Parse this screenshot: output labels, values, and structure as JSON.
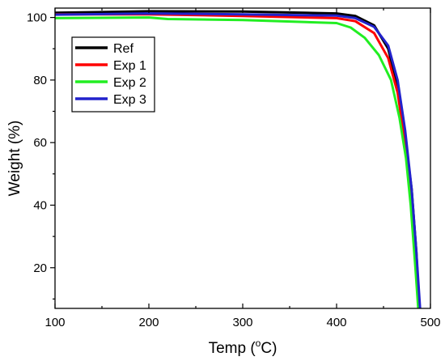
{
  "chart_data": {
    "type": "line",
    "xlabel": "Temp (",
    "xlabel_sup": "o",
    "xlabel_unit": "C)",
    "ylabel": "Weight (%)",
    "xlim": [
      100,
      500
    ],
    "ylim": [
      7,
      103
    ],
    "x_ticks": [
      100,
      200,
      300,
      400,
      500
    ],
    "y_ticks": [
      20,
      40,
      60,
      80,
      100
    ],
    "grid": false,
    "legend_position": "top-left",
    "series": [
      {
        "name": "Ref",
        "color": "#000000",
        "points": [
          [
            100,
            101.5
          ],
          [
            200,
            102.0
          ],
          [
            300,
            101.9
          ],
          [
            400,
            101.3
          ],
          [
            420,
            100.5
          ],
          [
            440,
            97.5
          ],
          [
            455,
            90.0
          ],
          [
            465,
            78.0
          ],
          [
            473,
            62.0
          ],
          [
            480,
            45.0
          ],
          [
            485,
            25.0
          ],
          [
            488,
            7.0
          ]
        ]
      },
      {
        "name": "Exp 1",
        "color": "#ff0000",
        "points": [
          [
            100,
            101.0
          ],
          [
            200,
            101.0
          ],
          [
            300,
            100.5
          ],
          [
            400,
            99.8
          ],
          [
            420,
            98.8
          ],
          [
            440,
            95.0
          ],
          [
            455,
            87.0
          ],
          [
            465,
            76.0
          ],
          [
            472,
            62.0
          ],
          [
            478,
            45.0
          ],
          [
            484,
            25.0
          ],
          [
            488,
            7.0
          ]
        ]
      },
      {
        "name": "Exp 2",
        "color": "#22ee22",
        "points": [
          [
            100,
            99.8
          ],
          [
            200,
            100.0
          ],
          [
            220,
            99.5
          ],
          [
            300,
            99.2
          ],
          [
            400,
            98.2
          ],
          [
            415,
            96.8
          ],
          [
            430,
            93.5
          ],
          [
            445,
            88.0
          ],
          [
            458,
            80.0
          ],
          [
            467,
            68.0
          ],
          [
            474,
            55.0
          ],
          [
            479,
            40.0
          ],
          [
            484,
            20.0
          ],
          [
            487,
            7.0
          ]
        ]
      },
      {
        "name": "Exp 3",
        "color": "#2222cc",
        "points": [
          [
            100,
            100.9
          ],
          [
            200,
            101.3
          ],
          [
            300,
            101.0
          ],
          [
            400,
            100.6
          ],
          [
            420,
            99.8
          ],
          [
            440,
            97.0
          ],
          [
            455,
            91.0
          ],
          [
            465,
            80.0
          ],
          [
            473,
            64.0
          ],
          [
            480,
            45.0
          ],
          [
            485,
            25.0
          ],
          [
            489,
            7.0
          ]
        ]
      }
    ]
  }
}
